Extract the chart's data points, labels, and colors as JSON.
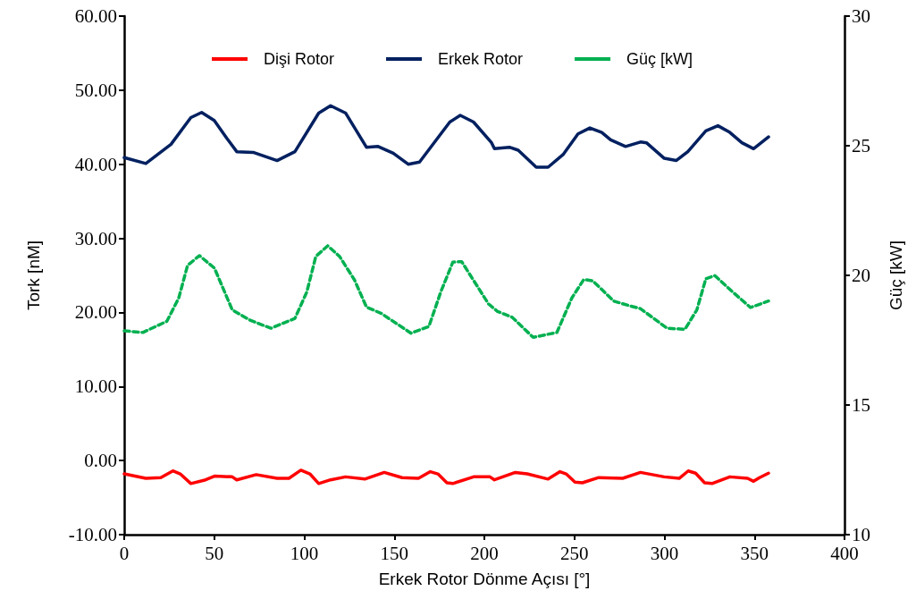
{
  "chart_data": {
    "type": "line",
    "xlabel": "Erkek Rotor Dönme Açısı [°]",
    "ylabel": "Tork [nM]",
    "y2label": "Güç [kW]",
    "xlim": [
      0,
      400
    ],
    "xticks": [
      0,
      50,
      100,
      150,
      200,
      250,
      300,
      350,
      400
    ],
    "ylim": [
      -10,
      60
    ],
    "yticks": [
      {
        "value": -10,
        "label": "-10.00"
      },
      {
        "value": 0,
        "label": "0.00"
      },
      {
        "value": 10,
        "label": "10.00"
      },
      {
        "value": 20,
        "label": "20.00"
      },
      {
        "value": 30,
        "label": "30.00"
      },
      {
        "value": 40,
        "label": "40.00"
      },
      {
        "value": 50,
        "label": "50.00"
      },
      {
        "value": 60,
        "label": "60.00"
      }
    ],
    "y2lim": [
      10,
      30
    ],
    "y2ticks": [
      10,
      15,
      20,
      25,
      30
    ],
    "grid": false,
    "legend": "top",
    "marker": "none",
    "series": [
      {
        "name": "Dişi Rotor",
        "color": "#ff0000",
        "line_style": "solid",
        "x": [
          0,
          12,
          20.3,
          27,
          31.1,
          37,
          45.2,
          50.1,
          60,
          62.5,
          73.3,
          84.9,
          91.5,
          98.1,
          103.1,
          108,
          114.6,
          122.9,
          133.6,
          144.4,
          154.3,
          163.4,
          170,
          174.2,
          179.2,
          182.5,
          194,
          203.1,
          205.6,
          217.2,
          223.8,
          235.4,
          242,
          245.4,
          250.3,
          254.4,
          263.5,
          276.8,
          286.7,
          299.9,
          308.2,
          313.2,
          317.3,
          322.3,
          326.4,
          336.3,
          346.2,
          349.5,
          352.8,
          357.8
        ],
        "values": [
          -1.8,
          -2.4,
          -2.3,
          -1.4,
          -1.8,
          -3.1,
          -2.6,
          -2.1,
          -2.2,
          -2.6,
          -1.9,
          -2.4,
          -2.4,
          -1.3,
          -1.8,
          -3.1,
          -2.6,
          -2.2,
          -2.5,
          -1.6,
          -2.3,
          -2.4,
          -1.5,
          -1.8,
          -3.0,
          -3.1,
          -2.2,
          -2.2,
          -2.6,
          -1.6,
          -1.8,
          -2.5,
          -1.5,
          -1.8,
          -2.9,
          -3.0,
          -2.3,
          -2.4,
          -1.6,
          -2.2,
          -2.4,
          -1.4,
          -1.7,
          -3.0,
          -3.1,
          -2.2,
          -2.4,
          -2.8,
          -2.3,
          -1.7
        ]
      },
      {
        "name": "Erkek Rotor",
        "color": "#002060",
        "line_style": "solid",
        "x": [
          0,
          12,
          26,
          37,
          43,
          50,
          57,
          62.5,
          71.6,
          84.9,
          94.8,
          108,
          114.6,
          123,
          134.5,
          141,
          149.4,
          157.7,
          164,
          180.8,
          186.6,
          194,
          204,
          205.6,
          213.9,
          218.8,
          228.8,
          235.4,
          243.7,
          252,
          258.6,
          265.2,
          270.1,
          278.4,
          286.7,
          290,
          299.9,
          306.5,
          313,
          323,
          329.7,
          336.3,
          343,
          349.5,
          357.8
        ],
        "values": [
          40.9,
          40.1,
          42.7,
          46.3,
          47.0,
          45.9,
          43.5,
          41.7,
          41.6,
          40.5,
          41.7,
          46.9,
          47.9,
          46.9,
          42.3,
          42.4,
          41.5,
          40.0,
          40.3,
          45.7,
          46.6,
          45.7,
          42.9,
          42.1,
          42.3,
          41.9,
          39.6,
          39.6,
          41.3,
          44.1,
          44.9,
          44.3,
          43.3,
          42.4,
          43.0,
          42.9,
          40.8,
          40.5,
          41.7,
          44.5,
          45.2,
          44.3,
          42.9,
          42.1,
          43.7
        ]
      },
      {
        "name": "Güç [kW]",
        "color": "#00b050",
        "line_style": "dashed",
        "axis": "y2",
        "x": [
          0,
          10.4,
          23.7,
          30.3,
          35.2,
          41.8,
          50.1,
          60,
          69.9,
          81.5,
          94.8,
          101.4,
          106.4,
          113,
          119.6,
          127.9,
          134.5,
          142.8,
          159.3,
          169.2,
          175.8,
          182.5,
          187.4,
          202.3,
          207.3,
          215.5,
          227.1,
          240.3,
          248.6,
          255.2,
          260.2,
          271.8,
          280,
          286.6,
          301.5,
          311.4,
          318,
          323,
          328,
          337.9,
          347.8,
          357.8
        ],
        "values": [
          17.86,
          17.8,
          18.23,
          19.13,
          20.39,
          20.76,
          20.28,
          18.67,
          18.27,
          17.96,
          18.34,
          19.36,
          20.73,
          21.14,
          20.73,
          19.82,
          18.78,
          18.53,
          17.77,
          18.03,
          19.36,
          20.51,
          20.53,
          18.9,
          18.61,
          18.38,
          17.61,
          17.8,
          19.13,
          19.84,
          19.79,
          19.01,
          18.84,
          18.72,
          17.96,
          17.92,
          18.67,
          19.87,
          19.99,
          19.36,
          18.76,
          19.01
        ]
      }
    ]
  }
}
